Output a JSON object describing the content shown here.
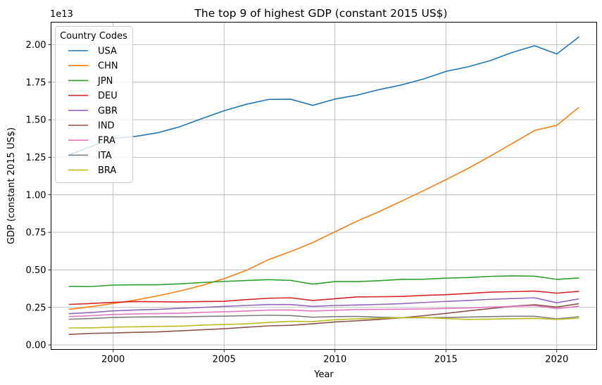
{
  "chart_data": {
    "type": "line",
    "title": "The top 9 of highest GDP (constant 2015 US$)",
    "xlabel": "Year",
    "ylabel": "GDP (constant 2015 US$)",
    "y_scale_label": "1e13",
    "xlim": [
      1997.2,
      2021.8
    ],
    "ylim": [
      -0.03,
      2.15
    ],
    "y_multiplier": 10000000000000.0,
    "grid": true,
    "legend_title": "Country Codes",
    "legend_position": "upper-left",
    "x_ticks": [
      2000,
      2005,
      2010,
      2015,
      2020
    ],
    "x_tick_labels": [
      "2000",
      "2005",
      "2010",
      "2015",
      "2020"
    ],
    "y_ticks": [
      0.0,
      0.25,
      0.5,
      0.75,
      1.0,
      1.25,
      1.5,
      1.75,
      2.0
    ],
    "y_tick_labels": [
      "0.00",
      "0.25",
      "0.50",
      "0.75",
      "1.00",
      "1.25",
      "1.50",
      "1.75",
      "2.00"
    ],
    "x": [
      1998,
      1999,
      2000,
      2001,
      2002,
      2003,
      2004,
      2005,
      2006,
      2007,
      2008,
      2009,
      2010,
      2011,
      2012,
      2013,
      2014,
      2015,
      2016,
      2017,
      2018,
      2019,
      2020,
      2021
    ],
    "series": [
      {
        "name": "USA",
        "color": "#1f77b4",
        "values": [
          1.265,
          1.322,
          1.376,
          1.389,
          1.413,
          1.453,
          1.508,
          1.56,
          1.603,
          1.635,
          1.637,
          1.596,
          1.638,
          1.664,
          1.701,
          1.732,
          1.772,
          1.822,
          1.853,
          1.894,
          1.949,
          1.993,
          1.938,
          2.052
        ]
      },
      {
        "name": "CHN",
        "color": "#ff7f0e",
        "values": [
          0.237,
          0.255,
          0.276,
          0.299,
          0.327,
          0.359,
          0.396,
          0.442,
          0.497,
          0.568,
          0.622,
          0.682,
          0.754,
          0.825,
          0.889,
          0.958,
          1.028,
          1.101,
          1.176,
          1.258,
          1.343,
          1.429,
          1.463,
          1.583
        ]
      },
      {
        "name": "JPN",
        "color": "#2ca02c",
        "values": [
          0.39,
          0.389,
          0.399,
          0.401,
          0.401,
          0.407,
          0.416,
          0.423,
          0.429,
          0.435,
          0.43,
          0.405,
          0.422,
          0.422,
          0.428,
          0.437,
          0.438,
          0.445,
          0.449,
          0.457,
          0.46,
          0.458,
          0.437,
          0.446
        ]
      },
      {
        "name": "DEU",
        "color": "#d62728",
        "values": [
          0.27,
          0.276,
          0.284,
          0.289,
          0.288,
          0.286,
          0.289,
          0.291,
          0.302,
          0.311,
          0.314,
          0.296,
          0.308,
          0.32,
          0.321,
          0.323,
          0.33,
          0.335,
          0.343,
          0.352,
          0.355,
          0.359,
          0.345,
          0.357
        ]
      },
      {
        "name": "GBR",
        "color": "#9467bd",
        "values": [
          0.208,
          0.216,
          0.227,
          0.233,
          0.237,
          0.244,
          0.25,
          0.257,
          0.263,
          0.269,
          0.269,
          0.257,
          0.263,
          0.266,
          0.27,
          0.275,
          0.283,
          0.29,
          0.296,
          0.304,
          0.309,
          0.314,
          0.281,
          0.307
        ]
      },
      {
        "name": "IND",
        "color": "#8c564b",
        "values": [
          0.07,
          0.077,
          0.08,
          0.084,
          0.087,
          0.094,
          0.101,
          0.108,
          0.118,
          0.127,
          0.131,
          0.141,
          0.153,
          0.161,
          0.17,
          0.181,
          0.195,
          0.21,
          0.227,
          0.242,
          0.258,
          0.268,
          0.252,
          0.275
        ]
      },
      {
        "name": "FRA",
        "color": "#e377c2",
        "values": [
          0.189,
          0.195,
          0.203,
          0.207,
          0.209,
          0.211,
          0.217,
          0.221,
          0.226,
          0.232,
          0.233,
          0.226,
          0.231,
          0.236,
          0.237,
          0.238,
          0.24,
          0.243,
          0.246,
          0.252,
          0.257,
          0.262,
          0.242,
          0.258
        ]
      },
      {
        "name": "ITA",
        "color": "#7f7f7f",
        "values": [
          0.171,
          0.176,
          0.183,
          0.186,
          0.187,
          0.187,
          0.19,
          0.192,
          0.195,
          0.198,
          0.196,
          0.185,
          0.189,
          0.19,
          0.185,
          0.181,
          0.181,
          0.183,
          0.186,
          0.189,
          0.191,
          0.191,
          0.174,
          0.188
        ]
      },
      {
        "name": "BRA",
        "color": "#bcbd22",
        "values": [
          0.113,
          0.114,
          0.119,
          0.121,
          0.124,
          0.125,
          0.132,
          0.136,
          0.141,
          0.15,
          0.157,
          0.156,
          0.168,
          0.174,
          0.177,
          0.182,
          0.183,
          0.176,
          0.17,
          0.172,
          0.175,
          0.177,
          0.17,
          0.178
        ]
      }
    ]
  }
}
